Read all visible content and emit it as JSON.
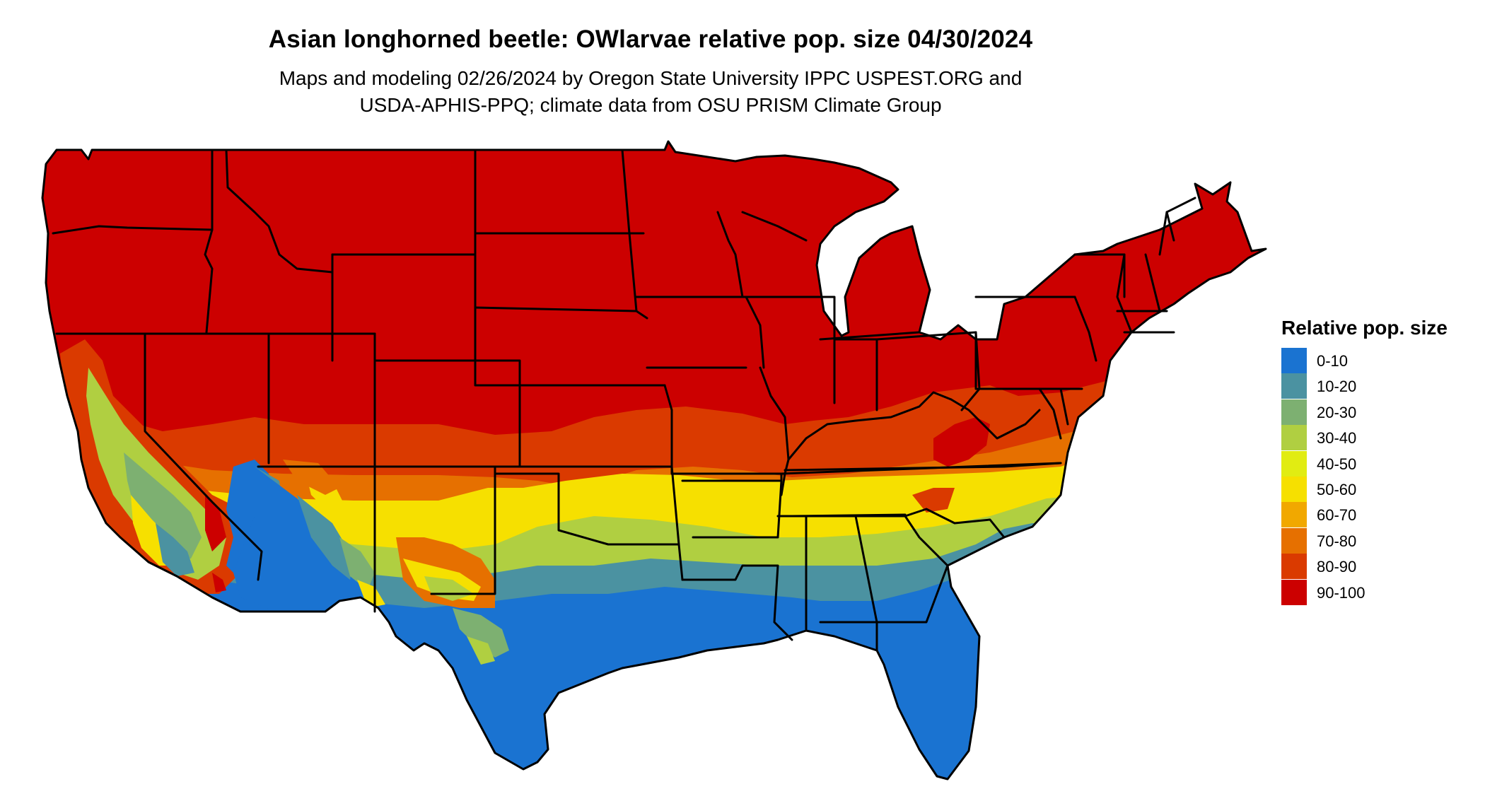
{
  "title": "Asian longhorned beetle: OWlarvae relative pop. size 04/30/2024",
  "subtitle_lines": [
    "Maps and modeling 02/26/2024 by Oregon State University IPPC USPEST.ORG and",
    "USDA-APHIS-PPQ; climate data from OSU PRISM Climate Group"
  ],
  "legend": {
    "title": "Relative pop. size",
    "items": [
      {
        "label": "0-10",
        "color": "#1a73d1"
      },
      {
        "label": "10-20",
        "color": "#4b92a1"
      },
      {
        "label": "20-30",
        "color": "#7db071"
      },
      {
        "label": "30-40",
        "color": "#b0cf41"
      },
      {
        "label": "40-50",
        "color": "#e1ec12"
      },
      {
        "label": "50-60",
        "color": "#f6e000"
      },
      {
        "label": "60-70",
        "color": "#f1a800"
      },
      {
        "label": "70-80",
        "color": "#e67000"
      },
      {
        "label": "80-90",
        "color": "#da3a00"
      },
      {
        "label": "90-100",
        "color": "#cc0000"
      }
    ]
  }
}
